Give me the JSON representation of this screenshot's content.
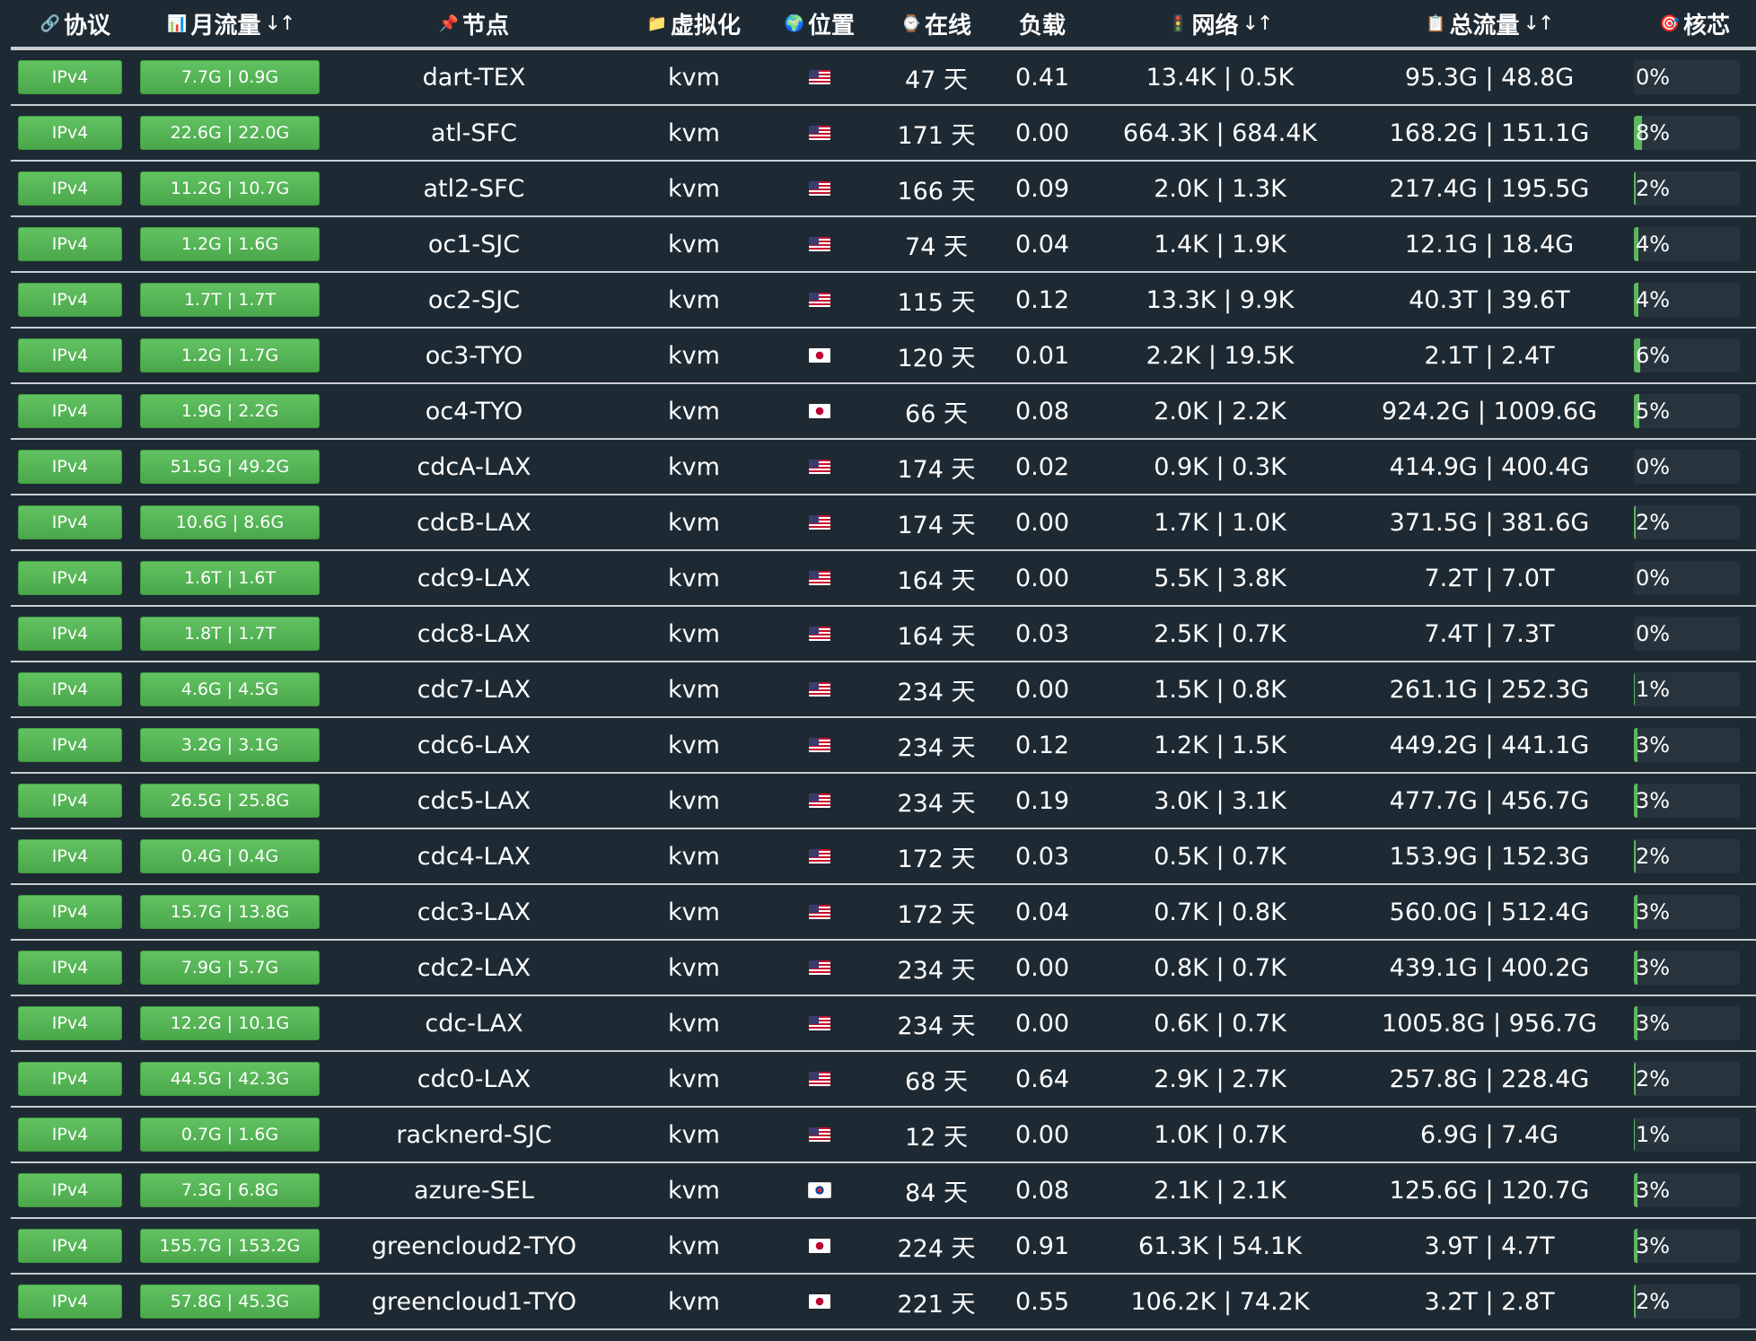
{
  "header": {
    "protocol": {
      "icon": "🔗",
      "label": "协议"
    },
    "monthly": {
      "icon": "📊",
      "label": "月流量",
      "sort": "↓↑"
    },
    "node": {
      "icon": "📌",
      "label": "节点"
    },
    "virt": {
      "icon": "📁",
      "label": "虚拟化"
    },
    "location": {
      "icon": "🌍",
      "label": "位置"
    },
    "uptime": {
      "icon": "⌚",
      "label": "在线"
    },
    "load": {
      "label": "负载"
    },
    "network": {
      "icon": "🚦",
      "label": "网络",
      "sort": "↓↑"
    },
    "total": {
      "icon": "📋",
      "label": "总流量",
      "sort": "↓↑"
    },
    "cpu": {
      "icon": "🎯",
      "label": "核芯"
    }
  },
  "colors": {
    "background": "#1e2a33",
    "badge_green": "#5cb85c",
    "divider": "#c9ced3",
    "text": "#ffffff"
  },
  "rows": [
    {
      "protocol": "IPv4",
      "monthly": "7.7G | 0.9G",
      "node": "dart-TEX",
      "virt": "kvm",
      "flag": "us",
      "uptime": "47 天",
      "load": "0.41",
      "network": "13.4K | 0.5K",
      "total": "95.3G | 48.8G",
      "cpu_label": "0%",
      "cpu": 0
    },
    {
      "protocol": "IPv4",
      "monthly": "22.6G | 22.0G",
      "node": "atl-SFC",
      "virt": "kvm",
      "flag": "us",
      "uptime": "171 天",
      "load": "0.00",
      "network": "664.3K | 684.4K",
      "total": "168.2G | 151.1G",
      "cpu_label": "8%",
      "cpu": 8
    },
    {
      "protocol": "IPv4",
      "monthly": "11.2G | 10.7G",
      "node": "atl2-SFC",
      "virt": "kvm",
      "flag": "us",
      "uptime": "166 天",
      "load": "0.09",
      "network": "2.0K | 1.3K",
      "total": "217.4G | 195.5G",
      "cpu_label": "2%",
      "cpu": 2
    },
    {
      "protocol": "IPv4",
      "monthly": "1.2G | 1.6G",
      "node": "oc1-SJC",
      "virt": "kvm",
      "flag": "us",
      "uptime": "74 天",
      "load": "0.04",
      "network": "1.4K | 1.9K",
      "total": "12.1G | 18.4G",
      "cpu_label": "4%",
      "cpu": 4
    },
    {
      "protocol": "IPv4",
      "monthly": "1.7T | 1.7T",
      "node": "oc2-SJC",
      "virt": "kvm",
      "flag": "us",
      "uptime": "115 天",
      "load": "0.12",
      "network": "13.3K | 9.9K",
      "total": "40.3T | 39.6T",
      "cpu_label": "4%",
      "cpu": 4
    },
    {
      "protocol": "IPv4",
      "monthly": "1.2G | 1.7G",
      "node": "oc3-TYO",
      "virt": "kvm",
      "flag": "jp",
      "uptime": "120 天",
      "load": "0.01",
      "network": "2.2K | 19.5K",
      "total": "2.1T | 2.4T",
      "cpu_label": "6%",
      "cpu": 6
    },
    {
      "protocol": "IPv4",
      "monthly": "1.9G | 2.2G",
      "node": "oc4-TYO",
      "virt": "kvm",
      "flag": "jp",
      "uptime": "66 天",
      "load": "0.08",
      "network": "2.0K | 2.2K",
      "total": "924.2G | 1009.6G",
      "cpu_label": "5%",
      "cpu": 5
    },
    {
      "protocol": "IPv4",
      "monthly": "51.5G | 49.2G",
      "node": "cdcA-LAX",
      "virt": "kvm",
      "flag": "us",
      "uptime": "174 天",
      "load": "0.02",
      "network": "0.9K | 0.3K",
      "total": "414.9G | 400.4G",
      "cpu_label": "0%",
      "cpu": 0
    },
    {
      "protocol": "IPv4",
      "monthly": "10.6G | 8.6G",
      "node": "cdcB-LAX",
      "virt": "kvm",
      "flag": "us",
      "uptime": "174 天",
      "load": "0.00",
      "network": "1.7K | 1.0K",
      "total": "371.5G | 381.6G",
      "cpu_label": "2%",
      "cpu": 2
    },
    {
      "protocol": "IPv4",
      "monthly": "1.6T | 1.6T",
      "node": "cdc9-LAX",
      "virt": "kvm",
      "flag": "us",
      "uptime": "164 天",
      "load": "0.00",
      "network": "5.5K | 3.8K",
      "total": "7.2T | 7.0T",
      "cpu_label": "0%",
      "cpu": 0
    },
    {
      "protocol": "IPv4",
      "monthly": "1.8T | 1.7T",
      "node": "cdc8-LAX",
      "virt": "kvm",
      "flag": "us",
      "uptime": "164 天",
      "load": "0.03",
      "network": "2.5K | 0.7K",
      "total": "7.4T | 7.3T",
      "cpu_label": "0%",
      "cpu": 0
    },
    {
      "protocol": "IPv4",
      "monthly": "4.6G | 4.5G",
      "node": "cdc7-LAX",
      "virt": "kvm",
      "flag": "us",
      "uptime": "234 天",
      "load": "0.00",
      "network": "1.5K | 0.8K",
      "total": "261.1G | 252.3G",
      "cpu_label": "1%",
      "cpu": 1
    },
    {
      "protocol": "IPv4",
      "monthly": "3.2G | 3.1G",
      "node": "cdc6-LAX",
      "virt": "kvm",
      "flag": "us",
      "uptime": "234 天",
      "load": "0.12",
      "network": "1.2K | 1.5K",
      "total": "449.2G | 441.1G",
      "cpu_label": "3%",
      "cpu": 3
    },
    {
      "protocol": "IPv4",
      "monthly": "26.5G | 25.8G",
      "node": "cdc5-LAX",
      "virt": "kvm",
      "flag": "us",
      "uptime": "234 天",
      "load": "0.19",
      "network": "3.0K | 3.1K",
      "total": "477.7G | 456.7G",
      "cpu_label": "3%",
      "cpu": 3
    },
    {
      "protocol": "IPv4",
      "monthly": "0.4G | 0.4G",
      "node": "cdc4-LAX",
      "virt": "kvm",
      "flag": "us",
      "uptime": "172 天",
      "load": "0.03",
      "network": "0.5K | 0.7K",
      "total": "153.9G | 152.3G",
      "cpu_label": "2%",
      "cpu": 2
    },
    {
      "protocol": "IPv4",
      "monthly": "15.7G | 13.8G",
      "node": "cdc3-LAX",
      "virt": "kvm",
      "flag": "us",
      "uptime": "172 天",
      "load": "0.04",
      "network": "0.7K | 0.8K",
      "total": "560.0G | 512.4G",
      "cpu_label": "3%",
      "cpu": 3
    },
    {
      "protocol": "IPv4",
      "monthly": "7.9G | 5.7G",
      "node": "cdc2-LAX",
      "virt": "kvm",
      "flag": "us",
      "uptime": "234 天",
      "load": "0.00",
      "network": "0.8K | 0.7K",
      "total": "439.1G | 400.2G",
      "cpu_label": "3%",
      "cpu": 3
    },
    {
      "protocol": "IPv4",
      "monthly": "12.2G | 10.1G",
      "node": "cdc-LAX",
      "virt": "kvm",
      "flag": "us",
      "uptime": "234 天",
      "load": "0.00",
      "network": "0.6K | 0.7K",
      "total": "1005.8G | 956.7G",
      "cpu_label": "3%",
      "cpu": 3
    },
    {
      "protocol": "IPv4",
      "monthly": "44.5G | 42.3G",
      "node": "cdc0-LAX",
      "virt": "kvm",
      "flag": "us",
      "uptime": "68 天",
      "load": "0.64",
      "network": "2.9K | 2.7K",
      "total": "257.8G | 228.4G",
      "cpu_label": "2%",
      "cpu": 2
    },
    {
      "protocol": "IPv4",
      "monthly": "0.7G | 1.6G",
      "node": "racknerd-SJC",
      "virt": "kvm",
      "flag": "us",
      "uptime": "12 天",
      "load": "0.00",
      "network": "1.0K | 0.7K",
      "total": "6.9G | 7.4G",
      "cpu_label": "1%",
      "cpu": 1
    },
    {
      "protocol": "IPv4",
      "monthly": "7.3G | 6.8G",
      "node": "azure-SEL",
      "virt": "kvm",
      "flag": "kr",
      "uptime": "84 天",
      "load": "0.08",
      "network": "2.1K | 2.1K",
      "total": "125.6G | 120.7G",
      "cpu_label": "3%",
      "cpu": 3
    },
    {
      "protocol": "IPv4",
      "monthly": "155.7G | 153.2G",
      "node": "greencloud2-TYO",
      "virt": "kvm",
      "flag": "jp",
      "uptime": "224 天",
      "load": "0.91",
      "network": "61.3K | 54.1K",
      "total": "3.9T | 4.7T",
      "cpu_label": "3%",
      "cpu": 3
    },
    {
      "protocol": "IPv4",
      "monthly": "57.8G | 45.3G",
      "node": "greencloud1-TYO",
      "virt": "kvm",
      "flag": "jp",
      "uptime": "221 天",
      "load": "0.55",
      "network": "106.2K | 74.2K",
      "total": "3.2T | 2.8T",
      "cpu_label": "2%",
      "cpu": 2
    }
  ]
}
